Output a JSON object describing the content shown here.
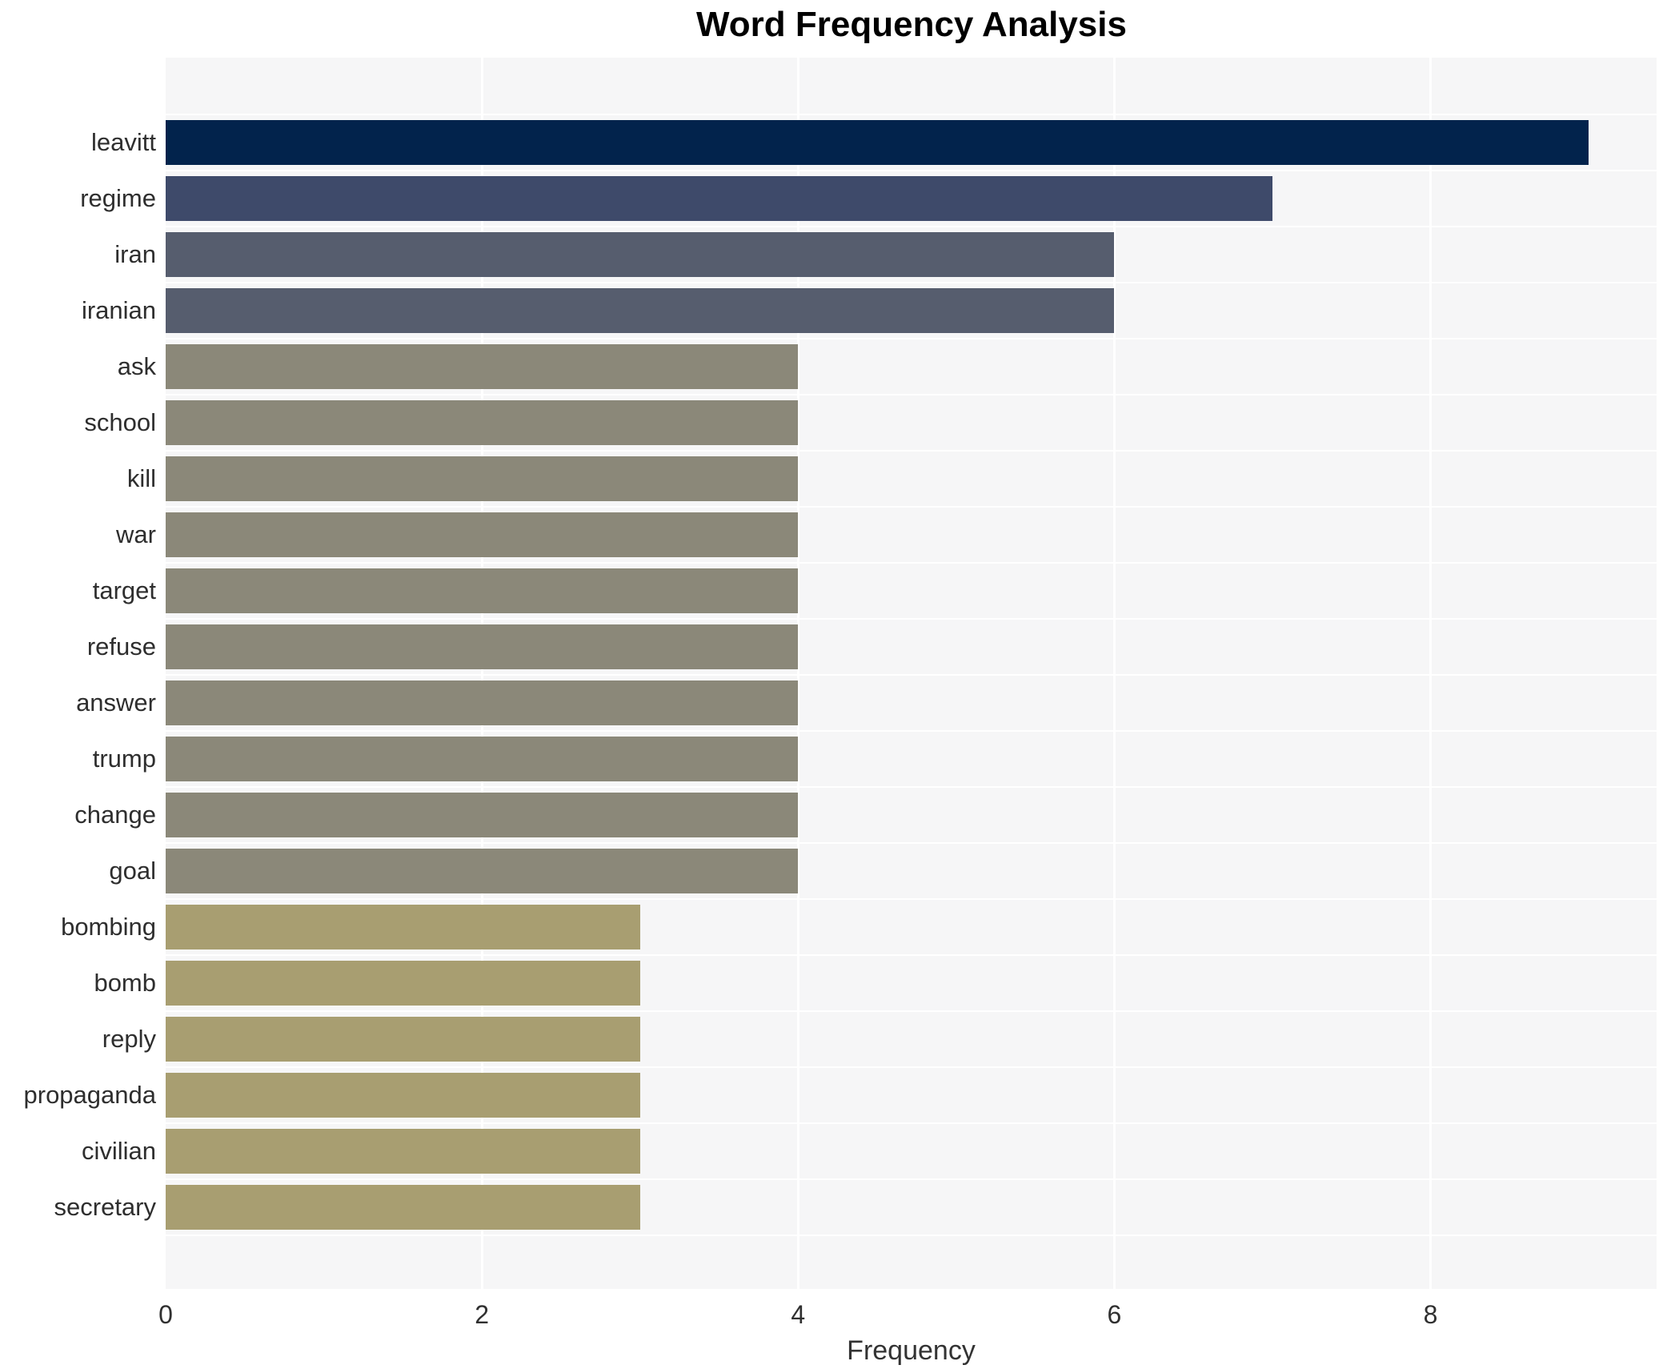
{
  "chart_data": {
    "type": "bar",
    "orientation": "horizontal",
    "title": "Word Frequency Analysis",
    "xlabel": "Frequency",
    "ylabel": "",
    "xlim": [
      0,
      9.43
    ],
    "xticks": [
      0,
      2,
      4,
      6,
      8
    ],
    "grid": true,
    "legend": false,
    "plot_background": "#f6f6f7",
    "gridline_color": "#ffffff",
    "categories": [
      "leavitt",
      "regime",
      "iran",
      "iranian",
      "ask",
      "school",
      "kill",
      "war",
      "target",
      "refuse",
      "answer",
      "trump",
      "change",
      "goal",
      "bombing",
      "bomb",
      "reply",
      "propaganda",
      "civilian",
      "secretary"
    ],
    "values": [
      9,
      7,
      6,
      6,
      4,
      4,
      4,
      4,
      4,
      4,
      4,
      4,
      4,
      4,
      3,
      3,
      3,
      3,
      3,
      3
    ],
    "colors": [
      "#02234c",
      "#3e4a6a",
      "#565d6e",
      "#565d6e",
      "#8b8879",
      "#8b8879",
      "#8b8879",
      "#8b8879",
      "#8b8879",
      "#8b8879",
      "#8b8879",
      "#8b8879",
      "#8b8879",
      "#8b8879",
      "#a89e71",
      "#a89e71",
      "#a89e71",
      "#a89e71",
      "#a89e71",
      "#a89e71"
    ]
  }
}
